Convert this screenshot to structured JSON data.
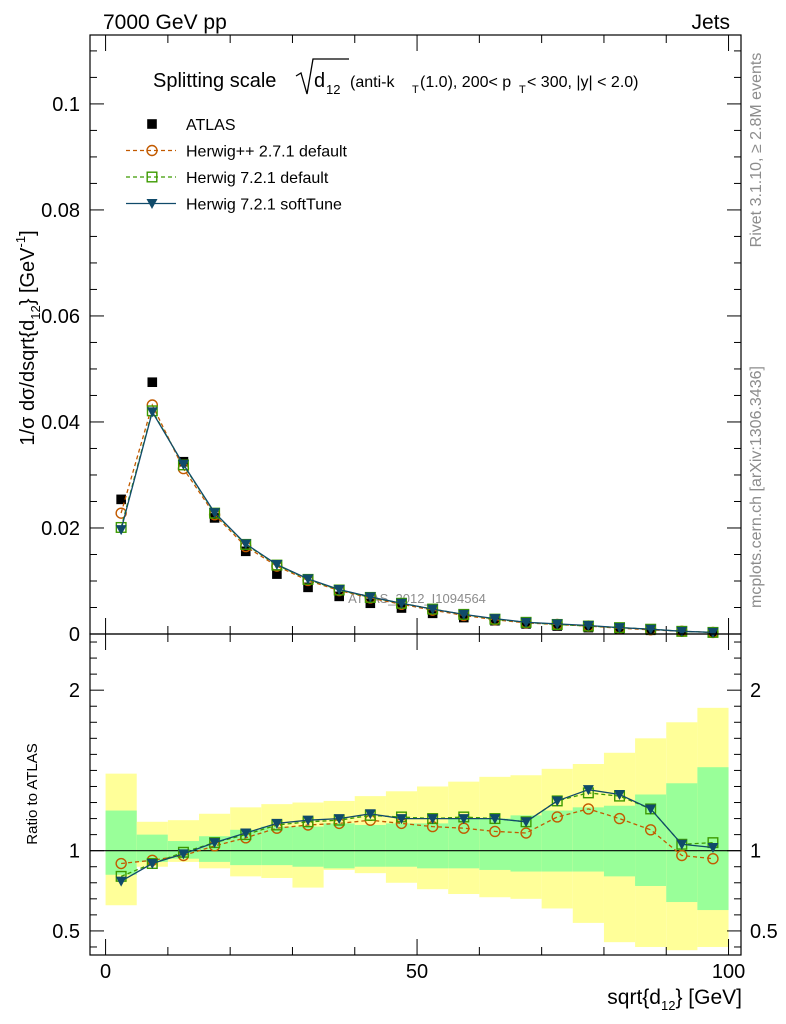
{
  "header": {
    "left": "7000 GeV pp",
    "right": "Jets"
  },
  "side_labels": {
    "rivet": "Rivet 3.1.10, ≥ 2.8M events",
    "mcplots": "mcplots.cern.ch [arXiv:1306.3436]"
  },
  "watermark": "ATLAS_2012_I1094564",
  "chart_data": [
    {
      "type": "scatter",
      "panel": "main",
      "title_main": "Splitting scale",
      "title_sqrt": "d",
      "title_sqrt_sub": "12",
      "title_rest_1": " (anti-k",
      "title_rest_sub1": "T",
      "title_rest_2": "(1.0), 200< p",
      "title_rest_sub2": "T",
      "title_rest_3": " < 300, |y| < 2.0)",
      "ylabel": "1/σ dσ/dsqrt{d",
      "ylabel_sub": "12",
      "ylabel_end": "} [GeV",
      "ylabel_sup": "-1",
      "ylabel_close": "]",
      "xlim": [
        -2.5,
        102
      ],
      "ylim": [
        0,
        0.113
      ],
      "y_ticks": [
        {
          "v": 0,
          "label": "0"
        },
        {
          "v": 0.02,
          "label": "0.02"
        },
        {
          "v": 0.04,
          "label": "0.04"
        },
        {
          "v": 0.06,
          "label": "0.06"
        },
        {
          "v": 0.08,
          "label": "0.08"
        },
        {
          "v": 0.1,
          "label": "0.1"
        }
      ],
      "x": [
        2.5,
        7.5,
        12.5,
        17.5,
        22.5,
        27.5,
        32.5,
        37.5,
        42.5,
        47.5,
        52.5,
        57.5,
        62.5,
        67.5,
        72.5,
        77.5,
        82.5,
        87.5,
        92.5,
        97.5
      ],
      "series": [
        {
          "name": "ATLAS",
          "color": "#000000",
          "marker": "square-filled",
          "line": "none",
          "values": [
            0.0254,
            0.0475,
            0.0325,
            0.0219,
            0.0156,
            0.0113,
            0.0088,
            0.0071,
            0.0058,
            0.0049,
            0.0039,
            0.0031,
            0.0025,
            0.0019,
            0.0015,
            0.0012,
            0.0009,
            0.0007,
            0.0005,
            0.0003
          ]
        },
        {
          "name": "Herwig++ 2.7.1 default",
          "color": "#c25a00",
          "marker": "circle-open",
          "line": "dashed",
          "values": [
            0.0228,
            0.0432,
            0.0312,
            0.0225,
            0.0165,
            0.0128,
            0.0101,
            0.0082,
            0.0068,
            0.0056,
            0.0045,
            0.0035,
            0.0027,
            0.0021,
            0.0018,
            0.0015,
            0.0011,
            0.0008,
            0.0005,
            0.0003
          ]
        },
        {
          "name": "Herwig 7.2.1 default",
          "color": "#3c9a00",
          "marker": "square-open",
          "line": "dashed",
          "values": [
            0.0201,
            0.0421,
            0.0319,
            0.0228,
            0.0169,
            0.013,
            0.0103,
            0.0083,
            0.0069,
            0.0058,
            0.0047,
            0.0037,
            0.0028,
            0.0022,
            0.0018,
            0.0015,
            0.0012,
            0.0009,
            0.0005,
            0.0003
          ]
        },
        {
          "name": "Herwig 7.2.1 softTune",
          "color": "#104a6a",
          "marker": "triangle-down",
          "line": "solid",
          "values": [
            0.0197,
            0.0419,
            0.032,
            0.0229,
            0.017,
            0.0131,
            0.0104,
            0.0084,
            0.007,
            0.0058,
            0.0047,
            0.0037,
            0.0029,
            0.0022,
            0.0019,
            0.0016,
            0.0012,
            0.0009,
            0.0005,
            0.0003
          ]
        }
      ],
      "legend_position": "top-left"
    },
    {
      "type": "scatter",
      "panel": "ratio",
      "ylabel": "Ratio to ATLAS",
      "xlabel": "sqrt{d",
      "xlabel_sub": "12",
      "xlabel_end": "} [GeV]",
      "xlim": [
        -2.5,
        102
      ],
      "ylim": [
        0.35,
        2.35
      ],
      "x_ticks": [
        {
          "v": 0,
          "label": "0"
        },
        {
          "v": 50,
          "label": "50"
        },
        {
          "v": 100,
          "label": "100"
        }
      ],
      "y_ticks": [
        {
          "v": 0.5,
          "label": "0.5"
        },
        {
          "v": 1,
          "label": "1"
        },
        {
          "v": 2,
          "label": "2"
        }
      ],
      "x": [
        2.5,
        7.5,
        12.5,
        17.5,
        22.5,
        27.5,
        32.5,
        37.5,
        42.5,
        47.5,
        52.5,
        57.5,
        62.5,
        67.5,
        72.5,
        77.5,
        82.5,
        87.5,
        92.5,
        97.5
      ],
      "bin_edges": [
        0,
        5,
        10,
        15,
        20,
        25,
        30,
        35,
        40,
        45,
        50,
        55,
        60,
        65,
        70,
        75,
        80,
        85,
        90,
        95,
        100
      ],
      "band_stat": {
        "color": "#99ff99",
        "lo": [
          0.85,
          0.93,
          0.95,
          0.93,
          0.91,
          0.91,
          0.9,
          0.89,
          0.9,
          0.9,
          0.89,
          0.89,
          0.88,
          0.87,
          0.87,
          0.87,
          0.84,
          0.78,
          0.68,
          0.63
        ],
        "hi": [
          1.25,
          1.1,
          1.06,
          1.09,
          1.13,
          1.15,
          1.15,
          1.17,
          1.16,
          1.17,
          1.17,
          1.2,
          1.2,
          1.22,
          1.25,
          1.27,
          1.28,
          1.35,
          1.42,
          1.52
        ]
      },
      "band_total": {
        "color": "#ffff99",
        "lo": [
          0.66,
          0.9,
          0.93,
          0.89,
          0.84,
          0.83,
          0.77,
          0.88,
          0.86,
          0.8,
          0.76,
          0.73,
          0.71,
          0.7,
          0.64,
          0.55,
          0.43,
          0.4,
          0.38,
          0.4
        ],
        "hi": [
          1.48,
          1.18,
          1.19,
          1.23,
          1.27,
          1.29,
          1.3,
          1.31,
          1.34,
          1.37,
          1.4,
          1.43,
          1.46,
          1.47,
          1.51,
          1.54,
          1.61,
          1.7,
          1.8,
          1.89
        ]
      },
      "reference_line": 1,
      "series": [
        {
          "name": "Herwig++ 2.7.1 default",
          "color": "#c25a00",
          "marker": "circle-open",
          "line": "dashed",
          "values": [
            0.92,
            0.94,
            0.97,
            1.03,
            1.08,
            1.14,
            1.16,
            1.17,
            1.19,
            1.17,
            1.15,
            1.14,
            1.12,
            1.11,
            1.21,
            1.26,
            1.2,
            1.13,
            0.97,
            0.95
          ]
        },
        {
          "name": "Herwig 7.2.1 default",
          "color": "#3c9a00",
          "marker": "square-open",
          "line": "dashed",
          "values": [
            0.84,
            0.92,
            0.99,
            1.05,
            1.1,
            1.16,
            1.18,
            1.19,
            1.22,
            1.21,
            1.2,
            1.21,
            1.2,
            1.18,
            1.31,
            1.36,
            1.34,
            1.26,
            1.04,
            1.05
          ]
        },
        {
          "name": "Herwig 7.2.1 softTune",
          "color": "#104a6a",
          "marker": "triangle-down",
          "line": "solid",
          "values": [
            0.81,
            0.92,
            0.98,
            1.05,
            1.11,
            1.17,
            1.19,
            1.2,
            1.23,
            1.2,
            1.2,
            1.2,
            1.2,
            1.18,
            1.31,
            1.38,
            1.35,
            1.26,
            1.04,
            1.02
          ]
        }
      ]
    }
  ]
}
